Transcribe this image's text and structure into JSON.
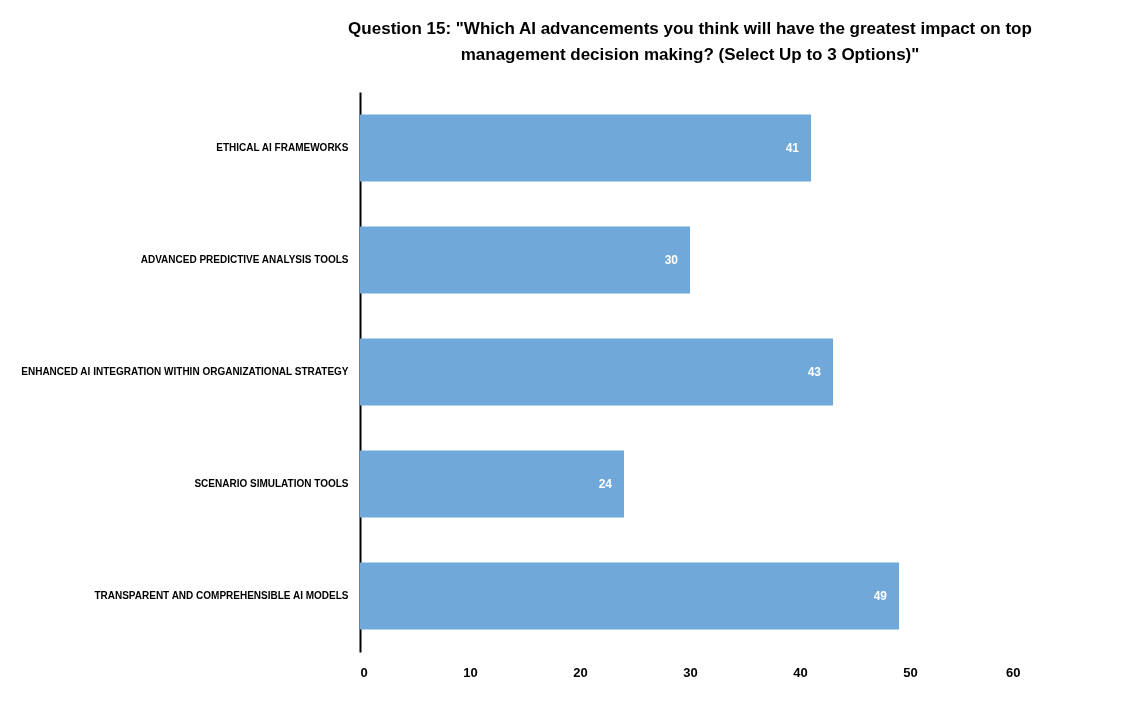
{
  "chart_data": {
    "type": "bar",
    "orientation": "horizontal",
    "title": "Question 15: \"Which AI advancements you think will have the greatest impact on top management decision making? (Select Up to 3 Options)\"",
    "categories": [
      "ETHICAL AI FRAMEWORKS",
      "ADVANCED PREDICTIVE ANALYSIS TOOLS",
      "ENHANCED AI INTEGRATION WITHIN ORGANIZATIONAL STRATEGY",
      "SCENARIO SIMULATION TOOLS",
      "TRANSPARENT AND COMPREHENSIBLE AI MODELS"
    ],
    "values": [
      41,
      30,
      43,
      24,
      49
    ],
    "color": "#6fa8d9",
    "xlim": [
      0,
      60
    ],
    "xticks": [
      0,
      10,
      20,
      30,
      40,
      50,
      60
    ],
    "data_labels": true,
    "grid": false
  }
}
